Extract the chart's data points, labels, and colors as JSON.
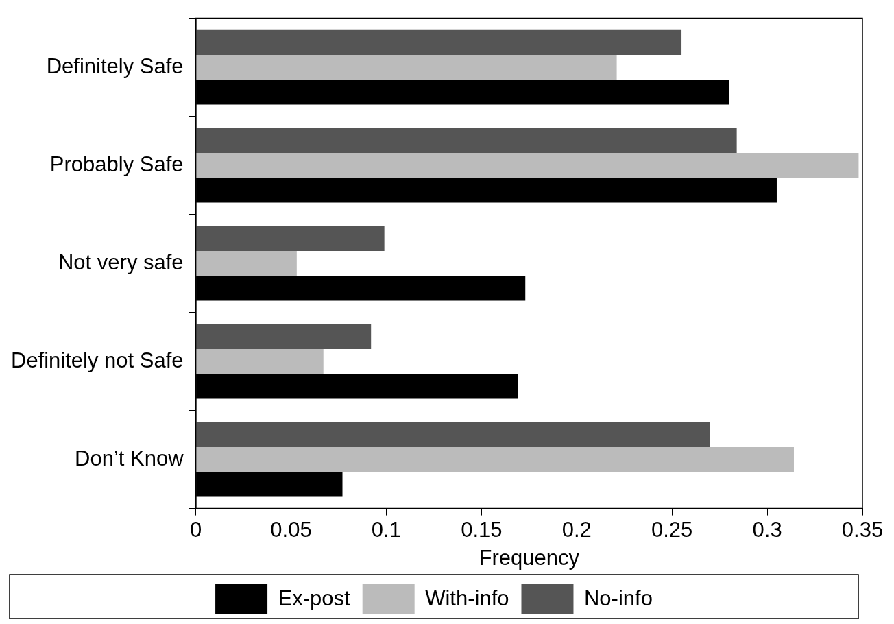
{
  "chart_data": {
    "type": "bar",
    "orientation": "horizontal",
    "xlabel": "Frequency",
    "categories": [
      "Definitely Safe",
      "Probably Safe",
      "Not very safe",
      "Definitely not Safe",
      "Don’t Know"
    ],
    "series": [
      {
        "name": "No-info",
        "color": "#555555",
        "values": [
          0.255,
          0.284,
          0.099,
          0.092,
          0.27
        ]
      },
      {
        "name": "With-info",
        "color": "#bbbbbb",
        "values": [
          0.221,
          0.348,
          0.053,
          0.067,
          0.314
        ]
      },
      {
        "name": "Ex-post",
        "color": "#000000",
        "values": [
          0.28,
          0.305,
          0.173,
          0.169,
          0.077
        ]
      }
    ],
    "xlim": [
      0,
      0.35
    ],
    "xticks": [
      0,
      0.05,
      0.1,
      0.15,
      0.2,
      0.25,
      0.3,
      0.35
    ],
    "grid": false,
    "legend": "bottom"
  }
}
